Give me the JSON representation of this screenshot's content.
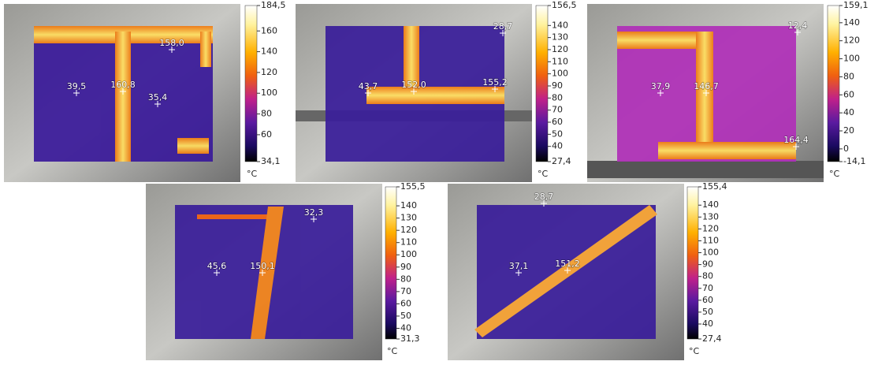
{
  "panels": [
    {
      "spots": [
        "39,5",
        "160,8",
        "35,4",
        "158,0"
      ],
      "scale": {
        "max": "184,5",
        "ticks": [
          "160",
          "140",
          "120",
          "100",
          "80",
          "60"
        ],
        "min": "34,1",
        "unit": "°C"
      }
    },
    {
      "spots": [
        "43,7",
        "152,0",
        "155,2",
        "28,7"
      ],
      "scale": {
        "max": "156,5",
        "ticks": [
          "140",
          "130",
          "120",
          "110",
          "100",
          "90",
          "80",
          "70",
          "60",
          "50",
          "40"
        ],
        "min": "27,4",
        "unit": "°C"
      }
    },
    {
      "spots": [
        "37,9",
        "146,7",
        "12,4",
        "164,4"
      ],
      "scale": {
        "max": "159,1",
        "ticks": [
          "140",
          "120",
          "100",
          "80",
          "60",
          "40",
          "20",
          "0"
        ],
        "min": "-14,1",
        "unit": "°C"
      }
    },
    {
      "spots": [
        "45,6",
        "150,1",
        "32,3"
      ],
      "scale": {
        "max": "155,5",
        "ticks": [
          "140",
          "130",
          "120",
          "110",
          "100",
          "90",
          "80",
          "70",
          "60",
          "50",
          "40"
        ],
        "min": "31,3",
        "unit": "°C"
      }
    },
    {
      "spots": [
        "37,1",
        "151,2",
        "28,7"
      ],
      "scale": {
        "max": "155,4",
        "ticks": [
          "140",
          "130",
          "120",
          "110",
          "100",
          "90",
          "80",
          "70",
          "60",
          "50",
          "40"
        ],
        "min": "27,4",
        "unit": "°C"
      }
    }
  ]
}
